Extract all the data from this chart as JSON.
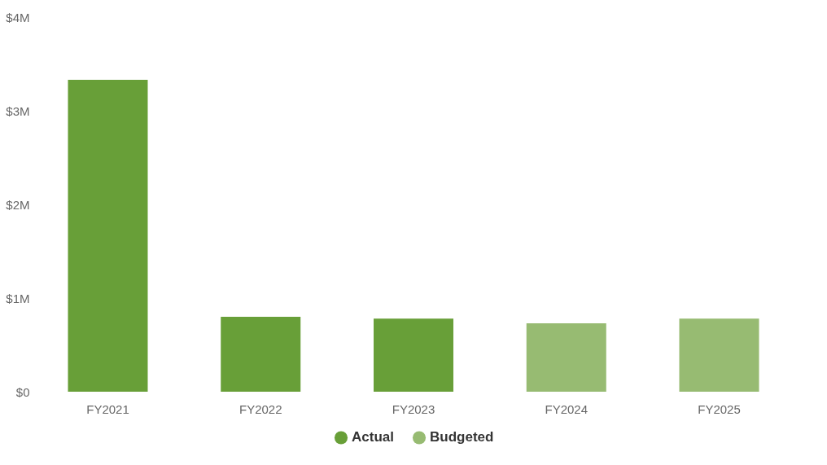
{
  "chart_data": {
    "type": "bar",
    "categories": [
      "FY2021",
      "FY2022",
      "FY2023",
      "FY2024",
      "FY2025"
    ],
    "series": [
      {
        "name": "Actual",
        "color": "#689f38",
        "values": [
          3.33,
          0.8,
          0.78,
          null,
          null
        ]
      },
      {
        "name": "Budgeted",
        "color": "#97bb72",
        "values": [
          null,
          null,
          null,
          0.73,
          0.78
        ]
      }
    ],
    "ylim": [
      0,
      4
    ],
    "yticks": [
      {
        "value": 0,
        "label": "$0"
      },
      {
        "value": 1,
        "label": "$1M"
      },
      {
        "value": 2,
        "label": "$2M"
      },
      {
        "value": 3,
        "label": "$3M"
      },
      {
        "value": 4,
        "label": "$4M"
      }
    ],
    "grid": false,
    "legend": "bottom"
  }
}
